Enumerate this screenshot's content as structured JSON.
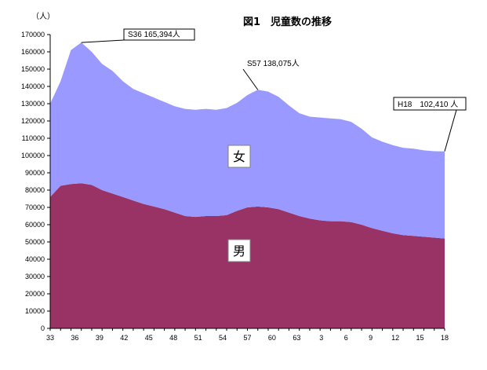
{
  "chart_data": {
    "type": "area",
    "title": "図1　児童数の推移",
    "unit_label": "（人）",
    "ylim": [
      0,
      170000
    ],
    "y_tick_step": 10000,
    "x_tick_labels": [
      "33",
      "36",
      "39",
      "42",
      "45",
      "48",
      "51",
      "54",
      "57",
      "60",
      "63",
      "3",
      "6",
      "9",
      "12",
      "15",
      "18"
    ],
    "series": [
      {
        "name": "男",
        "color": "#993366",
        "values": [
          76000,
          82500,
          83500,
          84000,
          83000,
          80000,
          78000,
          76000,
          74000,
          72000,
          70500,
          69000,
          67000,
          65000,
          64500,
          65000,
          65000,
          65500,
          68000,
          70000,
          70500,
          70000,
          69000,
          67000,
          65000,
          63500,
          62500,
          62000,
          62000,
          61500,
          60000,
          58000,
          56500,
          55000,
          54000,
          53500,
          53000,
          52500,
          52000
        ]
      },
      {
        "name": "女",
        "color": "#9999ff",
        "values": [
          54000,
          60500,
          77500,
          81394,
          77000,
          73000,
          71000,
          67000,
          64500,
          64000,
          63000,
          62000,
          61500,
          62000,
          62000,
          62000,
          61500,
          62000,
          62500,
          65000,
          67575,
          67000,
          65000,
          62000,
          59500,
          59000,
          59500,
          59500,
          59000,
          58000,
          55500,
          52500,
          51500,
          51000,
          50500,
          50500,
          50000,
          50000,
          50410
        ]
      }
    ],
    "annotations": [
      {
        "text": "S36  165,394人"
      },
      {
        "text": "S57  138,075人"
      },
      {
        "text": "H18　102,410 人"
      }
    ]
  }
}
